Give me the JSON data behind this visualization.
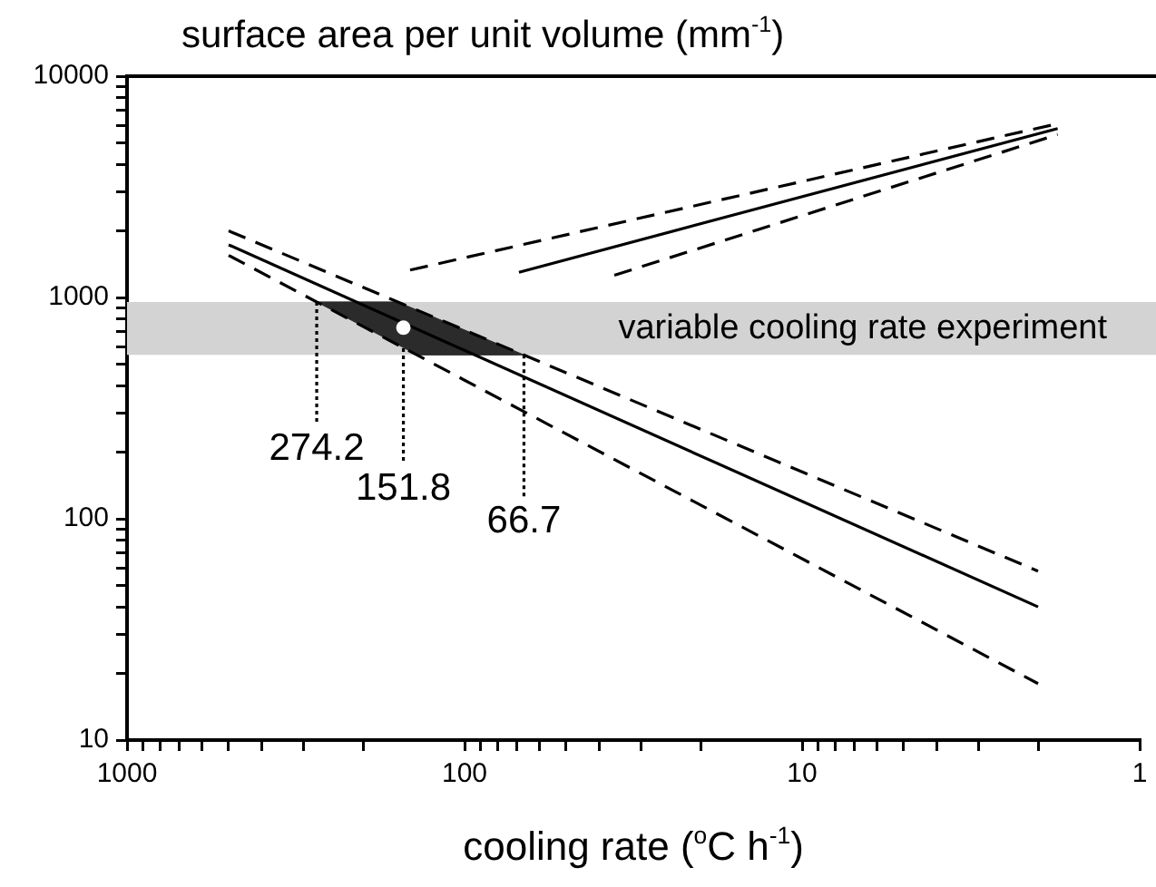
{
  "chart_data": {
    "type": "line",
    "ylabel": "surface area per unit volume (mm$^{-1}$)",
    "xlabel": "cooling rate ($^{o}$C h$^{-1}$)",
    "log": "xy",
    "xlim": [
      1000,
      1
    ],
    "ylim": [
      10,
      10000
    ],
    "xticks": [
      1000,
      {
        "value": 900,
        "label": null
      },
      {
        "value": 800,
        "label": null
      },
      {
        "value": 700,
        "label": null
      },
      {
        "value": 600,
        "label": null
      },
      {
        "value": 500,
        "label": null
      },
      {
        "value": 400,
        "label": null
      },
      {
        "value": 300,
        "label": null
      },
      {
        "value": 200,
        "label": null
      },
      100,
      {
        "value": 90,
        "label": null
      },
      {
        "value": 80,
        "label": null
      },
      {
        "value": 70,
        "label": null
      },
      {
        "value": 60,
        "label": null
      },
      {
        "value": 50,
        "label": null
      },
      {
        "value": 40,
        "label": null
      },
      {
        "value": 30,
        "label": null
      },
      {
        "value": 20,
        "label": null
      },
      10,
      {
        "value": 9,
        "label": null
      },
      {
        "value": 8,
        "label": null
      },
      {
        "value": 7,
        "label": null
      },
      {
        "value": 6,
        "label": null
      },
      {
        "value": 5,
        "label": null
      },
      {
        "value": 4,
        "label": null
      },
      {
        "value": 3,
        "label": null
      },
      {
        "value": 2,
        "label": null
      },
      1
    ],
    "yticks": [
      10,
      {
        "value": 20,
        "label": null
      },
      {
        "value": 30,
        "label": null
      },
      {
        "value": 40,
        "label": null
      },
      {
        "value": 50,
        "label": null
      },
      {
        "value": 60,
        "label": null
      },
      {
        "value": 70,
        "label": null
      },
      {
        "value": 80,
        "label": null
      },
      {
        "value": 90,
        "label": null
      },
      100,
      {
        "value": 200,
        "label": null
      },
      {
        "value": 300,
        "label": null
      },
      {
        "value": 400,
        "label": null
      },
      {
        "value": 500,
        "label": null
      },
      {
        "value": 600,
        "label": null
      },
      {
        "value": 700,
        "label": null
      },
      {
        "value": 800,
        "label": null
      },
      {
        "value": 900,
        "label": null
      },
      1000,
      {
        "value": 2000,
        "label": null
      },
      {
        "value": 3000,
        "label": null
      },
      {
        "value": 4000,
        "label": null
      },
      {
        "value": 5000,
        "label": null
      },
      {
        "value": 6000,
        "label": null
      },
      {
        "value": 7000,
        "label": null
      },
      {
        "value": 8000,
        "label": null
      },
      {
        "value": 9000,
        "label": null
      },
      10000
    ],
    "bands": [
      {
        "axis": "y",
        "from": 550,
        "to": 955,
        "label": "variable cooling rate experiment",
        "color": "#d3d3d3"
      }
    ],
    "series": [
      {
        "type": "area",
        "color": "#2b2b2b",
        "x": [
          274.2,
          158,
          66.7,
          138,
          274.2
        ],
        "values": [
          955,
          955,
          550,
          550,
          955
        ]
      },
      {
        "type": "line",
        "color": "#000000",
        "line_style": "dashed",
        "x": [
          500,
          2
        ],
        "values": [
          2000,
          58
        ]
      },
      {
        "type": "line",
        "color": "#000000",
        "line_style": "solid",
        "x": [
          500,
          2
        ],
        "values": [
          1730,
          40
        ]
      },
      {
        "type": "line",
        "color": "#000000",
        "line_style": "dashed",
        "x": [
          500,
          2
        ],
        "values": [
          1550,
          18
        ]
      },
      {
        "type": "line",
        "color": "#000000",
        "line_style": "dashed",
        "x": [
          145,
          1.75
        ],
        "values": [
          1330,
          6100
        ]
      },
      {
        "type": "line",
        "color": "#000000",
        "line_style": "solid",
        "x": [
          69,
          1.75
        ],
        "values": [
          1300,
          5800
        ]
      },
      {
        "type": "line",
        "color": "#000000",
        "line_style": "dashed",
        "x": [
          36,
          1.75
        ],
        "values": [
          1260,
          5450
        ]
      },
      {
        "type": "line",
        "color": "#000000",
        "line_style": "dotted",
        "x": [
          274.2,
          274.2
        ],
        "values": [
          955,
          267
        ]
      },
      {
        "type": "line",
        "color": "#000000",
        "line_style": "dotted",
        "x": [
          151.8,
          151.8
        ],
        "values": [
          590,
          176
        ]
      },
      {
        "type": "line",
        "color": "#000000",
        "line_style": "dotted",
        "x": [
          66.7,
          66.7
        ],
        "values": [
          550,
          125
        ]
      },
      {
        "type": "scatter",
        "color": "#ffffff",
        "marker": "circle",
        "x": [
          151.8
        ],
        "values": [
          730
        ]
      }
    ],
    "annotations": [
      {
        "text": "274.2",
        "x": 274.2,
        "y": 267
      },
      {
        "text": "151.8",
        "x": 151.8,
        "y": 176
      },
      {
        "text": "66.7",
        "x": 66.7,
        "y": 125
      }
    ],
    "legend": false
  }
}
